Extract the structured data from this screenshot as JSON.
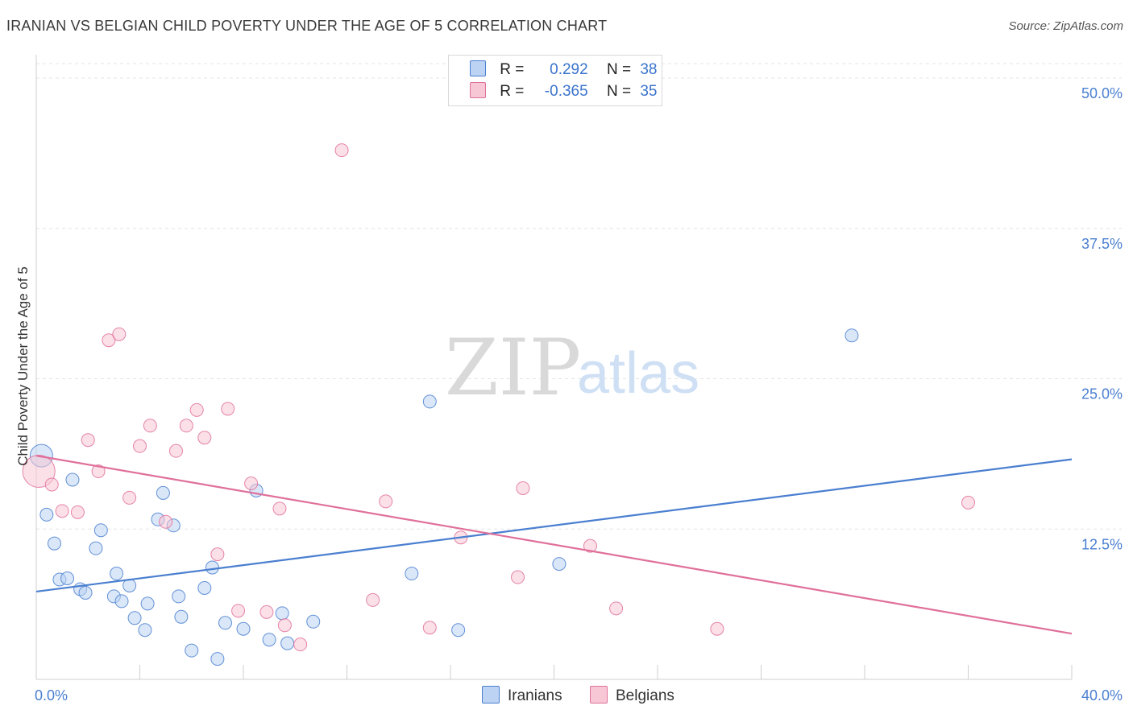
{
  "title": "IRANIAN VS BELGIAN CHILD POVERTY UNDER THE AGE OF 5 CORRELATION CHART",
  "source": "Source: ZipAtlas.com",
  "watermark": {
    "zip": "ZIP",
    "atlas": "atlas"
  },
  "legend": {
    "rows": [
      {
        "r_label": "R =",
        "r_value": "0.292",
        "n_label": "N =",
        "n_value": "38",
        "color": "#4a7fd0",
        "fill": "#bcd3f3"
      },
      {
        "r_label": "R =",
        "r_value": "-0.365",
        "n_label": "N =",
        "n_value": "35",
        "color": "#e0709a",
        "fill": "#f8c7d6"
      }
    ]
  },
  "bottom_legend": [
    {
      "label": "Iranians",
      "color": "#4a7fd0",
      "fill": "#bcd3f3"
    },
    {
      "label": "Belgians",
      "color": "#e0709a",
      "fill": "#f8c7d6"
    }
  ],
  "chart_data": {
    "type": "scatter",
    "title": "IRANIAN VS BELGIAN CHILD POVERTY UNDER THE AGE OF 5 CORRELATION CHART",
    "xlabel": "",
    "ylabel": "Child Poverty Under the Age of 5",
    "xlim": [
      0,
      40
    ],
    "ylim": [
      0,
      50
    ],
    "x_tick_labels": [
      "0.0%",
      "40.0%"
    ],
    "y_ticks": [
      12.5,
      25.0,
      37.5,
      50.0
    ],
    "y_tick_labels": [
      "12.5%",
      "25.0%",
      "37.5%",
      "50.0%"
    ],
    "grid": true,
    "series": [
      {
        "name": "Iranians",
        "color": "#4a7fd0",
        "fill": "#bcd3f3",
        "points": [
          [
            0.2,
            18.6
          ],
          [
            0.4,
            13.7
          ],
          [
            0.7,
            11.3
          ],
          [
            0.9,
            8.3
          ],
          [
            1.2,
            8.4
          ],
          [
            1.4,
            16.6
          ],
          [
            1.7,
            7.5
          ],
          [
            1.9,
            7.2
          ],
          [
            2.3,
            10.9
          ],
          [
            2.5,
            12.4
          ],
          [
            3.0,
            6.9
          ],
          [
            3.1,
            8.8
          ],
          [
            3.3,
            6.5
          ],
          [
            3.6,
            7.8
          ],
          [
            3.8,
            5.1
          ],
          [
            4.2,
            4.1
          ],
          [
            4.3,
            6.3
          ],
          [
            4.7,
            13.3
          ],
          [
            4.9,
            15.5
          ],
          [
            5.3,
            12.8
          ],
          [
            5.5,
            6.9
          ],
          [
            5.6,
            5.2
          ],
          [
            6.0,
            2.4
          ],
          [
            6.5,
            7.6
          ],
          [
            6.8,
            9.3
          ],
          [
            7.0,
            1.7
          ],
          [
            7.3,
            4.7
          ],
          [
            8.0,
            4.2
          ],
          [
            8.5,
            15.7
          ],
          [
            9.0,
            3.3
          ],
          [
            9.5,
            5.5
          ],
          [
            9.7,
            3.0
          ],
          [
            10.7,
            4.8
          ],
          [
            14.5,
            8.8
          ],
          [
            15.2,
            23.1
          ],
          [
            16.3,
            4.1
          ],
          [
            20.2,
            9.6
          ],
          [
            31.5,
            28.6
          ]
        ]
      },
      {
        "name": "Belgians",
        "color": "#e0709a",
        "fill": "#f8c7d6",
        "points": [
          [
            0.1,
            17.3
          ],
          [
            0.6,
            16.2
          ],
          [
            1.0,
            14.0
          ],
          [
            1.6,
            13.9
          ],
          [
            2.0,
            19.9
          ],
          [
            2.4,
            17.3
          ],
          [
            2.8,
            28.2
          ],
          [
            3.2,
            28.7
          ],
          [
            3.6,
            15.1
          ],
          [
            4.0,
            19.4
          ],
          [
            4.4,
            21.1
          ],
          [
            5.0,
            13.1
          ],
          [
            5.4,
            19.0
          ],
          [
            5.8,
            21.1
          ],
          [
            6.2,
            22.4
          ],
          [
            6.5,
            20.1
          ],
          [
            7.0,
            10.4
          ],
          [
            7.4,
            22.5
          ],
          [
            7.8,
            5.7
          ],
          [
            8.3,
            16.3
          ],
          [
            8.9,
            5.6
          ],
          [
            9.4,
            14.2
          ],
          [
            9.6,
            4.5
          ],
          [
            10.2,
            2.9
          ],
          [
            11.8,
            44.0
          ],
          [
            13.0,
            6.6
          ],
          [
            13.5,
            14.8
          ],
          [
            15.2,
            4.3
          ],
          [
            16.4,
            11.8
          ],
          [
            18.6,
            8.5
          ],
          [
            18.8,
            15.9
          ],
          [
            21.4,
            11.1
          ],
          [
            22.4,
            5.9
          ],
          [
            26.3,
            4.2
          ],
          [
            36.0,
            14.7
          ]
        ]
      }
    ],
    "trend_lines": [
      {
        "series": "Iranians",
        "start": [
          0,
          7.3
        ],
        "end": [
          40,
          18.3
        ]
      },
      {
        "series": "Belgians",
        "start": [
          0,
          18.6
        ],
        "end": [
          40,
          3.8
        ]
      }
    ]
  }
}
